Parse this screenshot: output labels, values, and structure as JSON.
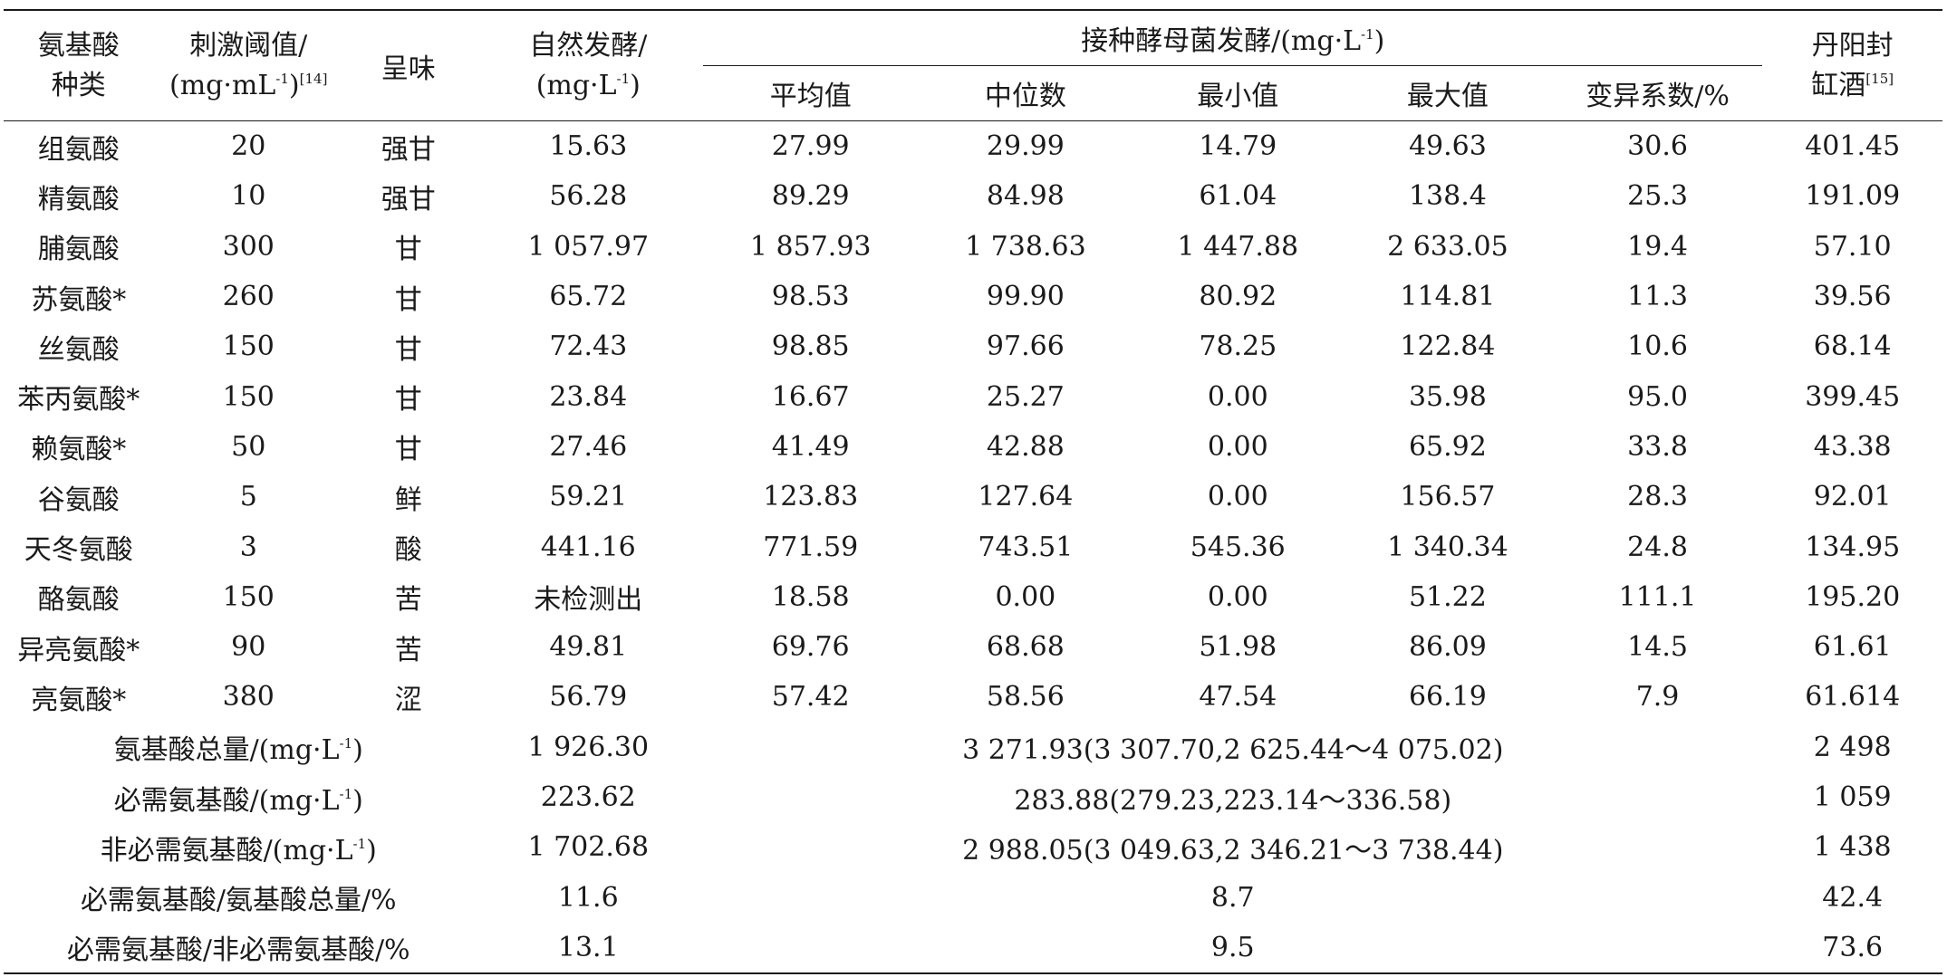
{
  "header": {
    "amino_type_l1": "氨基酸",
    "amino_type_l2": "种类",
    "threshold_l1": "刺激阈值/",
    "threshold_l2_pre": "(mg·mL",
    "threshold_l2_sup": "-1",
    "threshold_l2_post": ")",
    "threshold_ref": "[14]",
    "taste": "呈味",
    "natural_l1": "自然发酵/",
    "natural_l2_pre": "(mg·L",
    "natural_l2_sup": "-1",
    "natural_l2_post": ")",
    "inoc_group_pre": "接种酵母菌发酵/(mg·L",
    "inoc_group_sup": "-1",
    "inoc_group_post": ")",
    "inoc_mean": "平均值",
    "inoc_median": "中位数",
    "inoc_min": "最小值",
    "inoc_max": "最大值",
    "inoc_cv": "变异系数/%",
    "danyang_l1": "丹阳封",
    "danyang_l2": "缸酒",
    "danyang_ref": "[15]"
  },
  "rows": [
    {
      "name": "组氨酸",
      "threshold": "20",
      "taste": "强甘",
      "natural": "15.63",
      "mean": "27.99",
      "median": "29.99",
      "min": "14.79",
      "max": "49.63",
      "cv": "30.6",
      "danyang": "401.45"
    },
    {
      "name": "精氨酸",
      "threshold": "10",
      "taste": "强甘",
      "natural": "56.28",
      "mean": "89.29",
      "median": "84.98",
      "min": "61.04",
      "max": "138.4",
      "cv": "25.3",
      "danyang": "191.09"
    },
    {
      "name": "脯氨酸",
      "threshold": "300",
      "taste": "甘",
      "natural": "1 057.97",
      "mean": "1 857.93",
      "median": "1 738.63",
      "min": "1 447.88",
      "max": "2 633.05",
      "cv": "19.4",
      "danyang": "57.10"
    },
    {
      "name": "苏氨酸*",
      "threshold": "260",
      "taste": "甘",
      "natural": "65.72",
      "mean": "98.53",
      "median": "99.90",
      "min": "80.92",
      "max": "114.81",
      "cv": "11.3",
      "danyang": "39.56"
    },
    {
      "name": "丝氨酸",
      "threshold": "150",
      "taste": "甘",
      "natural": "72.43",
      "mean": "98.85",
      "median": "97.66",
      "min": "78.25",
      "max": "122.84",
      "cv": "10.6",
      "danyang": "68.14"
    },
    {
      "name": "苯丙氨酸*",
      "threshold": "150",
      "taste": "甘",
      "natural": "23.84",
      "mean": "16.67",
      "median": "25.27",
      "min": "0.00",
      "max": "35.98",
      "cv": "95.0",
      "danyang": "399.45"
    },
    {
      "name": "赖氨酸*",
      "threshold": "50",
      "taste": "甘",
      "natural": "27.46",
      "mean": "41.49",
      "median": "42.88",
      "min": "0.00",
      "max": "65.92",
      "cv": "33.8",
      "danyang": "43.38"
    },
    {
      "name": "谷氨酸",
      "threshold": "5",
      "taste": "鲜",
      "natural": "59.21",
      "mean": "123.83",
      "median": "127.64",
      "min": "0.00",
      "max": "156.57",
      "cv": "28.3",
      "danyang": "92.01"
    },
    {
      "name": "天冬氨酸",
      "threshold": "3",
      "taste": "酸",
      "natural": "441.16",
      "mean": "771.59",
      "median": "743.51",
      "min": "545.36",
      "max": "1 340.34",
      "cv": "24.8",
      "danyang": "134.95"
    },
    {
      "name": "酪氨酸",
      "threshold": "150",
      "taste": "苦",
      "natural": "未检测出",
      "mean": "18.58",
      "median": "0.00",
      "min": "0.00",
      "max": "51.22",
      "cv": "111.1",
      "danyang": "195.20"
    },
    {
      "name": "异亮氨酸*",
      "threshold": "90",
      "taste": "苦",
      "natural": "49.81",
      "mean": "69.76",
      "median": "68.68",
      "min": "51.98",
      "max": "86.09",
      "cv": "14.5",
      "danyang": "61.61"
    },
    {
      "name": "亮氨酸*",
      "threshold": "380",
      "taste": "涩",
      "natural": "56.79",
      "mean": "57.42",
      "median": "58.56",
      "min": "47.54",
      "max": "66.19",
      "cv": "7.9",
      "danyang": "61.614"
    }
  ],
  "summary": [
    {
      "label_pre": "氨基酸总量/(mg·L",
      "label_sup": "-1",
      "label_post": ")",
      "natural": "1 926.30",
      "inoc": "3 271.93(3 307.70,2 625.44～4 075.02)",
      "danyang": "2 498"
    },
    {
      "label_pre": "必需氨基酸/(mg·L",
      "label_sup": "-1",
      "label_post": ")",
      "natural": "223.62",
      "inoc": "283.88(279.23,223.14～336.58)",
      "danyang": "1 059"
    },
    {
      "label_pre": "非必需氨基酸/(mg·L",
      "label_sup": "-1",
      "label_post": ")",
      "natural": "1 702.68",
      "inoc": "2 988.05(3 049.63,2 346.21～3 738.44)",
      "danyang": "1 438"
    },
    {
      "label_pre": "必需氨基酸/氨基酸总量/%",
      "label_sup": "",
      "label_post": "",
      "natural": "11.6",
      "inoc": "8.7",
      "danyang": "42.4"
    },
    {
      "label_pre": "必需氨基酸/非必需氨基酸/%",
      "label_sup": "",
      "label_post": "",
      "natural": "13.1",
      "inoc": "9.5",
      "danyang": "73.6"
    }
  ]
}
